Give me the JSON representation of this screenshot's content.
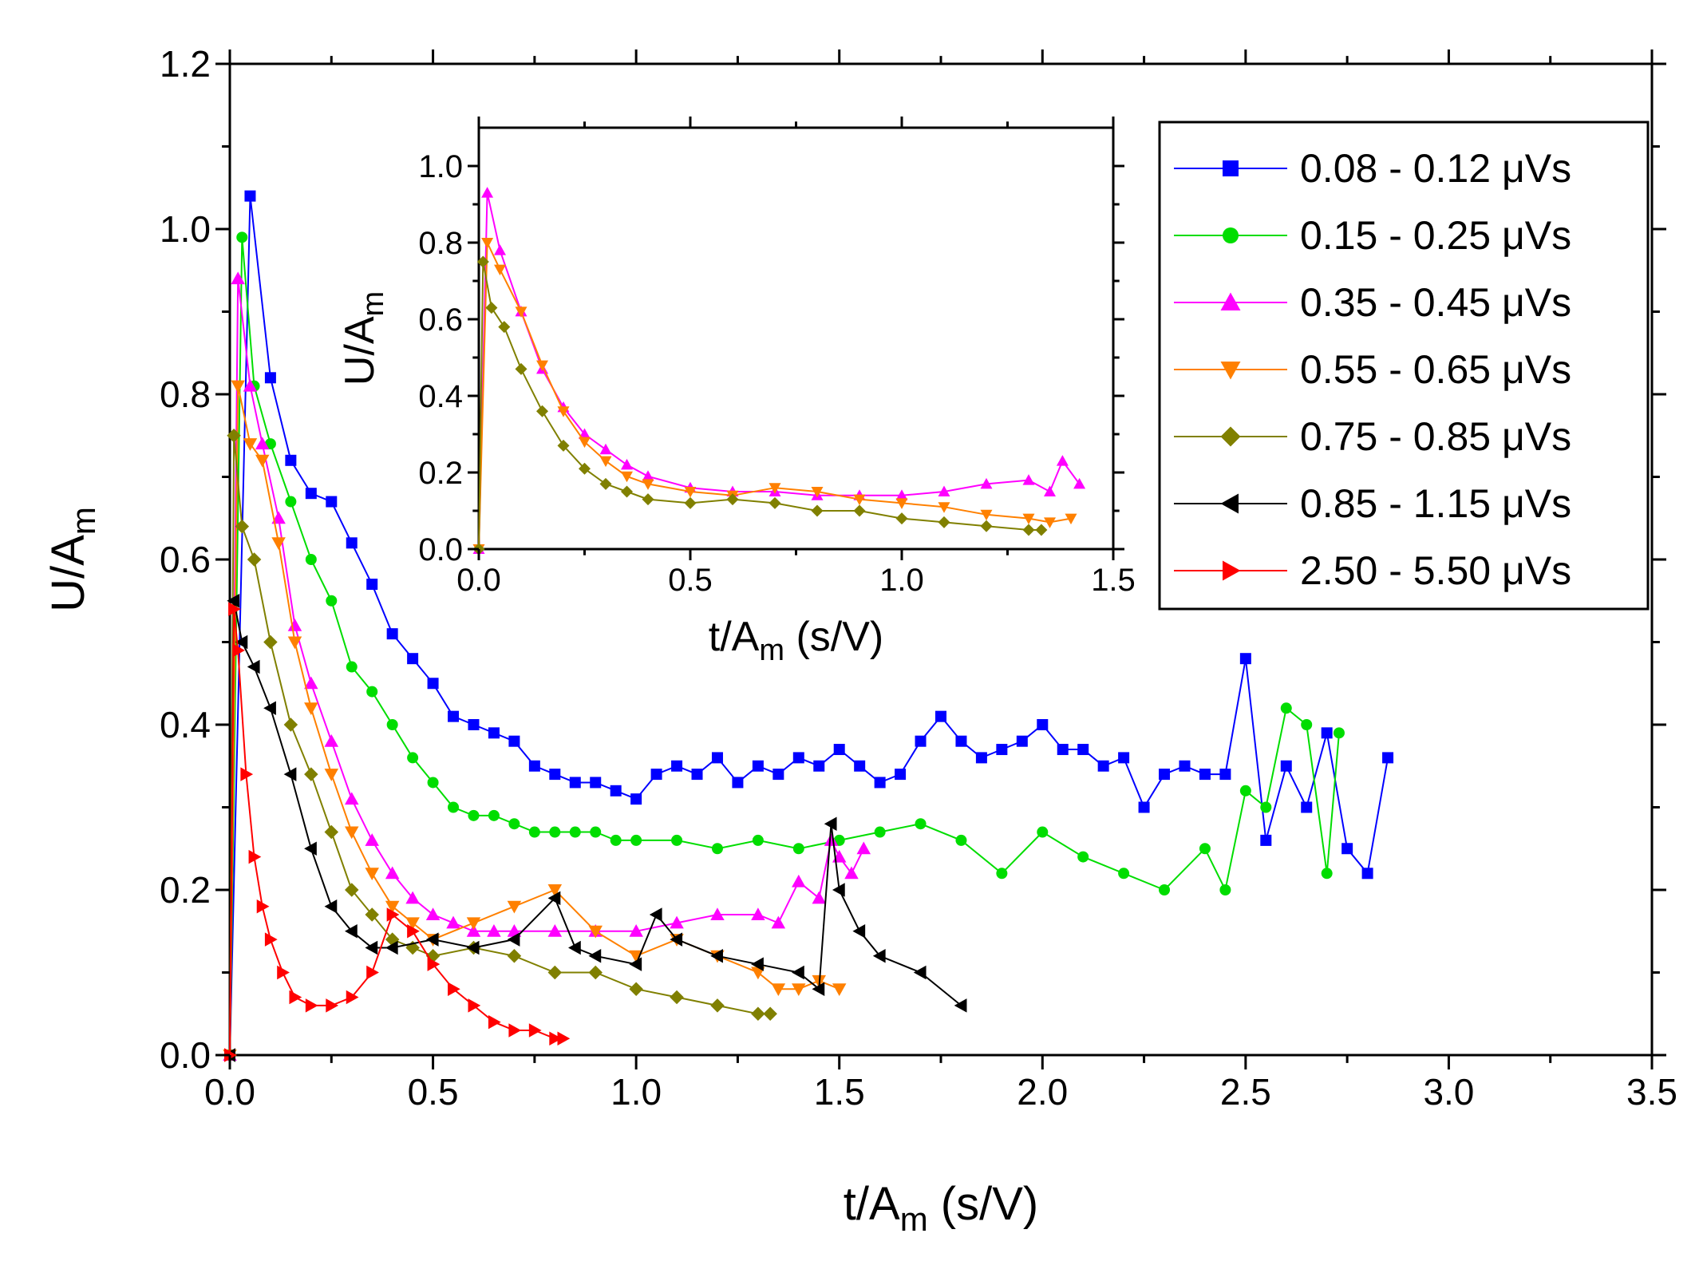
{
  "chart_data": [
    {
      "type": "line",
      "title": "",
      "xlabel": "t/A",
      "xlabel_sub": "m",
      "xlabel_unit": " (s/V)",
      "ylabel": "U/A",
      "ylabel_sub": "m",
      "xlim": [
        0,
        3.5
      ],
      "ylim": [
        0,
        1.2
      ],
      "xticks": [
        "0.0",
        "0.5",
        "1.0",
        "1.5",
        "2.0",
        "2.5",
        "3.0",
        "3.5"
      ],
      "yticks": [
        "0.0",
        "0.2",
        "0.4",
        "0.6",
        "0.8",
        "1.0",
        "1.2"
      ],
      "grid": false,
      "legend_position": "top-right",
      "series": [
        {
          "name": "0.08 - 0.12 μVs",
          "color": "#0000ff",
          "marker": "square",
          "x": [
            0.0,
            0.05,
            0.1,
            0.15,
            0.2,
            0.25,
            0.3,
            0.35,
            0.4,
            0.45,
            0.5,
            0.55,
            0.6,
            0.65,
            0.7,
            0.75,
            0.8,
            0.85,
            0.9,
            0.95,
            1.0,
            1.05,
            1.1,
            1.15,
            1.2,
            1.25,
            1.3,
            1.35,
            1.4,
            1.45,
            1.5,
            1.55,
            1.6,
            1.65,
            1.7,
            1.75,
            1.8,
            1.85,
            1.9,
            1.95,
            2.0,
            2.05,
            2.1,
            2.15,
            2.2,
            2.25,
            2.3,
            2.35,
            2.4,
            2.45,
            2.5,
            2.55,
            2.6,
            2.65,
            2.7,
            2.75,
            2.8,
            2.85
          ],
          "y": [
            0.0,
            1.04,
            0.82,
            0.72,
            0.68,
            0.67,
            0.62,
            0.57,
            0.51,
            0.48,
            0.45,
            0.41,
            0.4,
            0.39,
            0.38,
            0.35,
            0.34,
            0.33,
            0.33,
            0.32,
            0.31,
            0.34,
            0.35,
            0.34,
            0.36,
            0.33,
            0.35,
            0.34,
            0.36,
            0.35,
            0.37,
            0.35,
            0.33,
            0.34,
            0.38,
            0.41,
            0.38,
            0.36,
            0.37,
            0.38,
            0.4,
            0.37,
            0.37,
            0.35,
            0.36,
            0.3,
            0.34,
            0.35,
            0.34,
            0.34,
            0.48,
            0.26,
            0.35,
            0.3,
            0.39,
            0.25,
            0.22,
            0.36
          ]
        },
        {
          "name": "0.15 - 0.25 μVs",
          "color": "#00dd00",
          "marker": "circle",
          "x": [
            0.0,
            0.03,
            0.06,
            0.1,
            0.15,
            0.2,
            0.25,
            0.3,
            0.35,
            0.4,
            0.45,
            0.5,
            0.55,
            0.6,
            0.65,
            0.7,
            0.75,
            0.8,
            0.85,
            0.9,
            0.95,
            1.0,
            1.1,
            1.2,
            1.3,
            1.4,
            1.5,
            1.6,
            1.7,
            1.8,
            1.9,
            2.0,
            2.1,
            2.2,
            2.3,
            2.4,
            2.45,
            2.5,
            2.55,
            2.6,
            2.65,
            2.7,
            2.73
          ],
          "y": [
            0.0,
            0.99,
            0.81,
            0.74,
            0.67,
            0.6,
            0.55,
            0.47,
            0.44,
            0.4,
            0.36,
            0.33,
            0.3,
            0.29,
            0.29,
            0.28,
            0.27,
            0.27,
            0.27,
            0.27,
            0.26,
            0.26,
            0.26,
            0.25,
            0.26,
            0.25,
            0.26,
            0.27,
            0.28,
            0.26,
            0.22,
            0.27,
            0.24,
            0.22,
            0.2,
            0.25,
            0.2,
            0.32,
            0.3,
            0.42,
            0.4,
            0.22,
            0.39
          ]
        },
        {
          "name": "0.35 - 0.45 μVs",
          "color": "#ff00ff",
          "marker": "triangle-up",
          "x": [
            0.0,
            0.02,
            0.05,
            0.08,
            0.12,
            0.16,
            0.2,
            0.25,
            0.3,
            0.35,
            0.4,
            0.45,
            0.5,
            0.55,
            0.6,
            0.65,
            0.7,
            0.8,
            0.9,
            1.0,
            1.1,
            1.2,
            1.3,
            1.35,
            1.4,
            1.45,
            1.48,
            1.5,
            1.53,
            1.56
          ],
          "y": [
            0.0,
            0.94,
            0.81,
            0.74,
            0.65,
            0.52,
            0.45,
            0.38,
            0.31,
            0.26,
            0.22,
            0.19,
            0.17,
            0.16,
            0.15,
            0.15,
            0.15,
            0.15,
            0.15,
            0.15,
            0.16,
            0.17,
            0.17,
            0.16,
            0.21,
            0.19,
            0.26,
            0.24,
            0.22,
            0.25
          ]
        },
        {
          "name": "0.55 - 0.65 μVs",
          "color": "#ff8000",
          "marker": "triangle-down",
          "x": [
            0.0,
            0.02,
            0.05,
            0.08,
            0.12,
            0.16,
            0.2,
            0.25,
            0.3,
            0.35,
            0.4,
            0.45,
            0.5,
            0.6,
            0.7,
            0.8,
            0.9,
            1.0,
            1.1,
            1.2,
            1.3,
            1.35,
            1.4,
            1.45,
            1.5
          ],
          "y": [
            0.0,
            0.81,
            0.74,
            0.72,
            0.62,
            0.5,
            0.42,
            0.34,
            0.27,
            0.22,
            0.18,
            0.16,
            0.14,
            0.16,
            0.18,
            0.2,
            0.15,
            0.12,
            0.14,
            0.12,
            0.1,
            0.08,
            0.08,
            0.09,
            0.08
          ]
        },
        {
          "name": "0.75 - 0.85 μVs",
          "color": "#808000",
          "marker": "diamond",
          "x": [
            0.0,
            0.01,
            0.03,
            0.06,
            0.1,
            0.15,
            0.2,
            0.25,
            0.3,
            0.35,
            0.4,
            0.45,
            0.5,
            0.6,
            0.7,
            0.8,
            0.9,
            1.0,
            1.1,
            1.2,
            1.3,
            1.33
          ],
          "y": [
            0.0,
            0.75,
            0.64,
            0.6,
            0.5,
            0.4,
            0.34,
            0.27,
            0.2,
            0.17,
            0.14,
            0.13,
            0.12,
            0.13,
            0.12,
            0.1,
            0.1,
            0.08,
            0.07,
            0.06,
            0.05,
            0.05
          ]
        },
        {
          "name": "0.85 - 1.15 μVs",
          "color": "#000000",
          "marker": "triangle-left",
          "x": [
            0.0,
            0.01,
            0.03,
            0.06,
            0.1,
            0.15,
            0.2,
            0.25,
            0.3,
            0.35,
            0.4,
            0.5,
            0.6,
            0.7,
            0.8,
            0.85,
            0.9,
            1.0,
            1.05,
            1.1,
            1.2,
            1.3,
            1.4,
            1.45,
            1.48,
            1.5,
            1.55,
            1.6,
            1.7,
            1.8
          ],
          "y": [
            0.0,
            0.55,
            0.5,
            0.47,
            0.42,
            0.34,
            0.25,
            0.18,
            0.15,
            0.13,
            0.13,
            0.14,
            0.13,
            0.14,
            0.19,
            0.13,
            0.12,
            0.11,
            0.17,
            0.14,
            0.12,
            0.11,
            0.1,
            0.08,
            0.28,
            0.2,
            0.15,
            0.12,
            0.1,
            0.06
          ]
        },
        {
          "name": "2.50 - 5.50 μVs",
          "color": "#ff0000",
          "marker": "triangle-right",
          "x": [
            0.0,
            0.01,
            0.02,
            0.04,
            0.06,
            0.08,
            0.1,
            0.13,
            0.16,
            0.2,
            0.25,
            0.3,
            0.35,
            0.4,
            0.45,
            0.5,
            0.55,
            0.6,
            0.65,
            0.7,
            0.75,
            0.8,
            0.82
          ],
          "y": [
            0.0,
            0.54,
            0.49,
            0.34,
            0.24,
            0.18,
            0.14,
            0.1,
            0.07,
            0.06,
            0.06,
            0.07,
            0.1,
            0.17,
            0.15,
            0.11,
            0.08,
            0.06,
            0.04,
            0.03,
            0.03,
            0.02,
            0.02
          ]
        }
      ]
    },
    {
      "type": "line",
      "title": "",
      "xlabel": "t/A",
      "xlabel_sub": "m",
      "xlabel_unit": " (s/V)",
      "ylabel": "U/A",
      "ylabel_sub": "m",
      "xlim": [
        0,
        1.5
      ],
      "ylim": [
        0,
        1.1
      ],
      "xticks": [
        "0.0",
        "0.5",
        "1.0",
        "1.5"
      ],
      "yticks": [
        "0.0",
        "0.2",
        "0.4",
        "0.6",
        "0.8",
        "1.0"
      ],
      "grid": false,
      "series": [
        {
          "name": "0.35 - 0.45 μVs",
          "color": "#ff00ff",
          "marker": "triangle-up",
          "x": [
            0.0,
            0.02,
            0.05,
            0.1,
            0.15,
            0.2,
            0.25,
            0.3,
            0.35,
            0.4,
            0.5,
            0.6,
            0.7,
            0.8,
            0.9,
            1.0,
            1.1,
            1.2,
            1.3,
            1.35,
            1.38,
            1.42
          ],
          "y": [
            0.0,
            0.93,
            0.78,
            0.62,
            0.47,
            0.37,
            0.3,
            0.26,
            0.22,
            0.19,
            0.16,
            0.15,
            0.15,
            0.14,
            0.14,
            0.14,
            0.15,
            0.17,
            0.18,
            0.15,
            0.23,
            0.17
          ]
        },
        {
          "name": "0.55 - 0.65 μVs",
          "color": "#ff8000",
          "marker": "triangle-down",
          "x": [
            0.0,
            0.02,
            0.05,
            0.1,
            0.15,
            0.2,
            0.25,
            0.3,
            0.35,
            0.4,
            0.5,
            0.6,
            0.7,
            0.8,
            0.9,
            1.0,
            1.1,
            1.2,
            1.3,
            1.35,
            1.4
          ],
          "y": [
            0.0,
            0.8,
            0.73,
            0.62,
            0.48,
            0.36,
            0.28,
            0.23,
            0.19,
            0.17,
            0.15,
            0.14,
            0.16,
            0.15,
            0.13,
            0.12,
            0.11,
            0.09,
            0.08,
            0.07,
            0.08
          ]
        },
        {
          "name": "0.75 - 0.85 μVs",
          "color": "#808000",
          "marker": "diamond",
          "x": [
            0.0,
            0.01,
            0.03,
            0.06,
            0.1,
            0.15,
            0.2,
            0.25,
            0.3,
            0.35,
            0.4,
            0.5,
            0.6,
            0.7,
            0.8,
            0.9,
            1.0,
            1.1,
            1.2,
            1.3,
            1.33
          ],
          "y": [
            0.0,
            0.75,
            0.63,
            0.58,
            0.47,
            0.36,
            0.27,
            0.21,
            0.17,
            0.15,
            0.13,
            0.12,
            0.13,
            0.12,
            0.1,
            0.1,
            0.08,
            0.07,
            0.06,
            0.05,
            0.05
          ]
        }
      ]
    }
  ]
}
